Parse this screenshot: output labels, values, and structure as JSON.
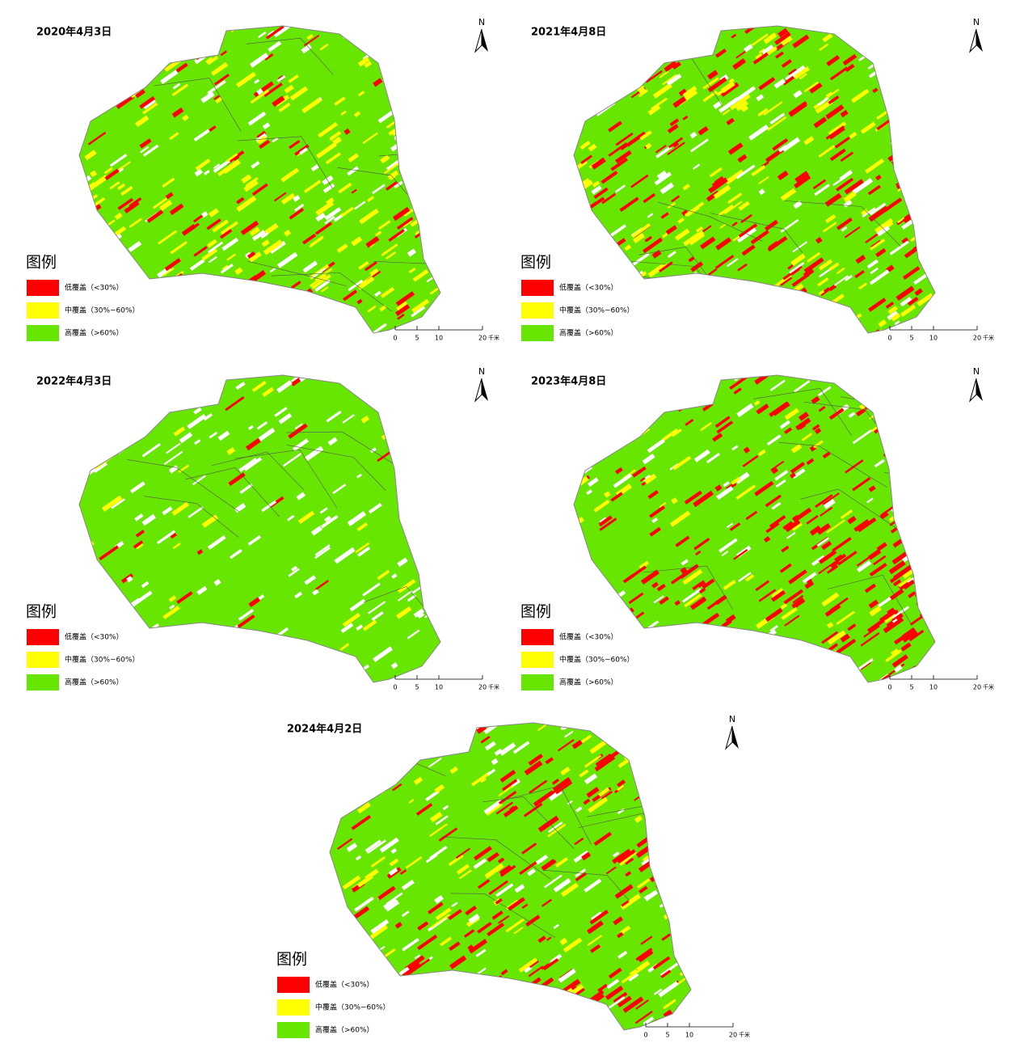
{
  "panels": [
    {
      "title": "2020年4月3日"
    },
    {
      "title": "2021年4月8日"
    },
    {
      "title": "2022年4月3日"
    },
    {
      "title": "2023年4月8日"
    },
    {
      "title": "2024年4月2日"
    }
  ],
  "north": "N",
  "legend": {
    "title": "图例",
    "items": [
      {
        "label": "低覆盖（<30%）",
        "color": "#ff0000"
      },
      {
        "label": "中覆盖（30%~60%）",
        "color": "#ffff00"
      },
      {
        "label": "高覆盖（>60%）",
        "color": "#66e600"
      }
    ]
  },
  "scale_bar": {
    "ticks": [
      0,
      5,
      10,
      20
    ],
    "unit": "千米"
  }
}
